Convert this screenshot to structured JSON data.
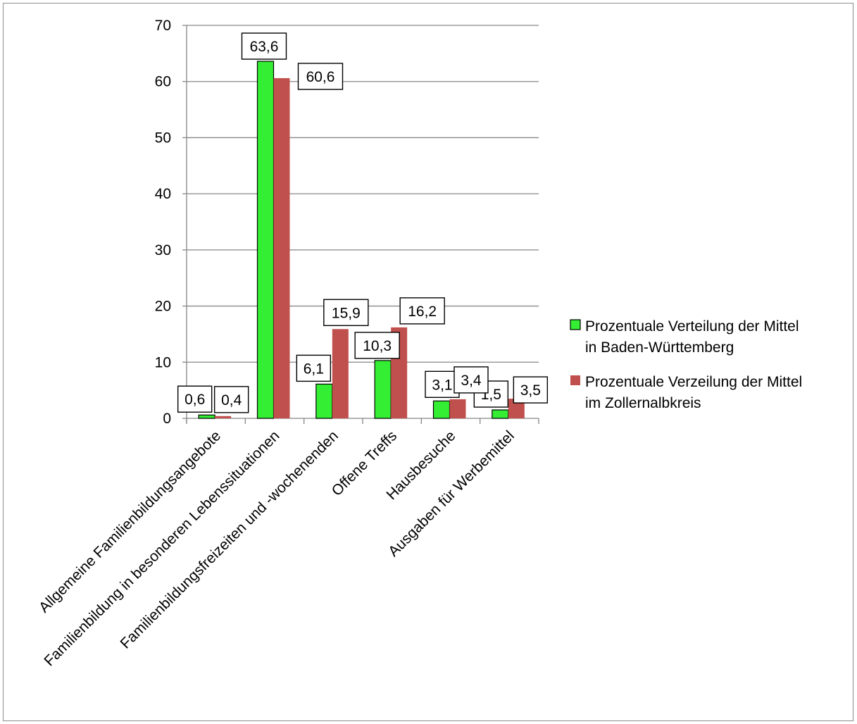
{
  "chart_data": {
    "type": "bar",
    "title": "",
    "xlabel": "",
    "ylabel": "",
    "ylim": [
      0,
      70
    ],
    "yticks": [
      0,
      10,
      20,
      30,
      40,
      50,
      60,
      70
    ],
    "grid": true,
    "legend_position": "right",
    "categories": [
      "Allgemeine Familienbildungsangebote",
      "Familienbildung in besonderen Lebenssituationen",
      "Familienbildungsfreizeiten und -wochenenden",
      "Offene Treffs",
      "Hausbesuche",
      "Ausgaben für Werbemittel"
    ],
    "series": [
      {
        "name": "Prozentuale Verteilung der Mittel in Baden-Württemberg",
        "legend_lines": [
          "Prozentuale Verteilung der Mittel",
          "in Baden-Württemberg"
        ],
        "color": "#33ee33",
        "values": [
          0.6,
          63.6,
          6.1,
          10.3,
          3.1,
          1.5
        ],
        "labels": [
          "0,6",
          "63,6",
          "6,1",
          "10,3",
          "3,1",
          "1,5"
        ]
      },
      {
        "name": "Prozentuale Verzeilung der Mittel im Zollernalbkreis",
        "legend_lines": [
          "Prozentuale Verzeilung der Mittel",
          "im Zollernalbkreis"
        ],
        "color": "#c0504d",
        "values": [
          0.4,
          60.6,
          15.9,
          16.2,
          3.4,
          3.5
        ],
        "labels": [
          "0,4",
          "60,6",
          "15,9",
          "16,2",
          "3,4",
          "3,5"
        ]
      }
    ]
  }
}
